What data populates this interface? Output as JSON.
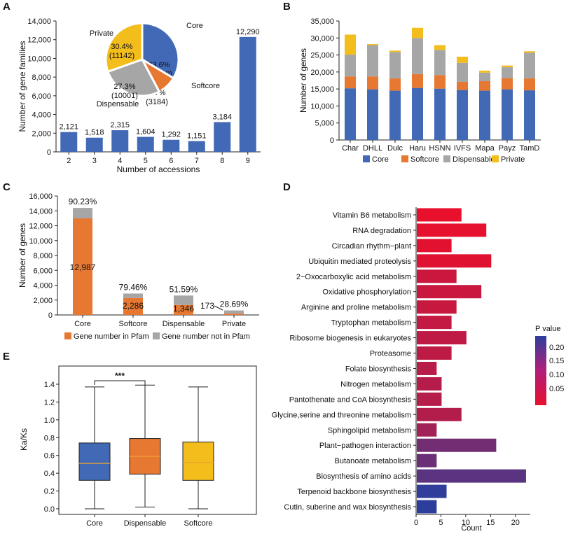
{
  "panels": {
    "A": "A",
    "B": "B",
    "C": "C",
    "D": "D",
    "E": "E"
  },
  "colors": {
    "core": "#4169b5",
    "softcore": "#e67832",
    "dispensable": "#a6a6a6",
    "private": "#f3bd1c"
  },
  "chart_data": [
    {
      "id": "A",
      "type": "bar",
      "xlabel": "Number of accessions",
      "ylabel": "Number of gene families",
      "categories": [
        "2",
        "3",
        "4",
        "5",
        "6",
        "7",
        "8",
        "9"
      ],
      "values": [
        2121,
        1518,
        2315,
        1604,
        1292,
        1151,
        3184,
        12290
      ],
      "labels": [
        "2,121",
        "1,518",
        "2,315",
        "1,604",
        "1,292",
        "1,151",
        "3,184",
        "12,290"
      ],
      "ylim": [
        0,
        14000
      ],
      "yticks": [
        "0",
        "2,000",
        "4,000",
        "6,000",
        "8,000",
        "10,000",
        "12,000",
        "14,000"
      ],
      "inset_pie": {
        "type": "pie",
        "slices": [
          {
            "name": "Core",
            "value": 12290,
            "percent": "33.6%",
            "count": "(12290)",
            "color": "#4169b5"
          },
          {
            "name": "Softcore",
            "value": 3184,
            "percent": "8.7%",
            "count": "(3184)",
            "color": "#e67832"
          },
          {
            "name": "Dispensable",
            "value": 10001,
            "percent": "27.3%",
            "count": "(10001)",
            "color": "#a6a6a6"
          },
          {
            "name": "Private",
            "value": 11142,
            "percent": "30.4%",
            "count": "(11142)",
            "color": "#f3bd1c"
          }
        ]
      }
    },
    {
      "id": "B",
      "type": "bar",
      "stacked": true,
      "ylabel": "Number of genes",
      "categories": [
        "Char",
        "DHLL",
        "Dulc",
        "Haru",
        "HSNN",
        "IVFS",
        "Mapa",
        "Payz",
        "TamD"
      ],
      "series": [
        {
          "name": "Core",
          "values": [
            15200,
            14900,
            14500,
            15300,
            15100,
            14700,
            14500,
            14900,
            14600
          ]
        },
        {
          "name": "Softcore",
          "values": [
            3500,
            3800,
            3600,
            4100,
            4000,
            2400,
            2800,
            3300,
            3500
          ]
        },
        {
          "name": "Dispensable",
          "values": [
            6400,
            9200,
            7800,
            10600,
            7400,
            5600,
            2500,
            3200,
            7600
          ]
        },
        {
          "name": "Private",
          "values": [
            5900,
            300,
            400,
            3000,
            1400,
            1800,
            600,
            500,
            400
          ]
        }
      ],
      "ylim": [
        0,
        35000
      ],
      "yticks": [
        "0",
        "5,000",
        "10,000",
        "15,000",
        "20,000",
        "25,000",
        "30,000",
        "35,000"
      ],
      "legend": [
        "Core",
        "Softcore",
        "Dispensable",
        "Private"
      ]
    },
    {
      "id": "C",
      "type": "bar",
      "stacked": true,
      "ylabel": "Number of genes",
      "categories": [
        "Core",
        "Softcore",
        "Dispensable",
        "Private"
      ],
      "series": [
        {
          "name": "Gene number in Pfam",
          "values": [
            12987,
            2286,
            1346,
            173
          ]
        },
        {
          "name": "Gene number not in Pfam",
          "values": [
            1407,
            591,
            1263,
            430
          ]
        }
      ],
      "in_labels": [
        "12,987",
        "2,286",
        "1,346",
        "173"
      ],
      "pct_labels": [
        "90.23%",
        "79.46%",
        "51.59%",
        "28.69%"
      ],
      "ylim": [
        0,
        16000
      ],
      "yticks": [
        "0",
        "2,000",
        "4,000",
        "6,000",
        "8,000",
        "10,000",
        "12,000",
        "14,000",
        "16,000"
      ],
      "legend": [
        "Gene number in Pfam",
        "Gene number not in Pfam"
      ]
    },
    {
      "id": "D",
      "type": "bar",
      "orientation": "horizontal",
      "xlabel": "Count",
      "categories": [
        "Vitamin B6 metabolism",
        "RNA degradation",
        "Circadian rhythm−plant",
        "Ubiquitin mediated proteolysis",
        "2−Oxocarboxylic acid metabolism",
        "Oxidative phosphorylation",
        "Arginine and proline metabolism",
        "Tryptophan metabolism",
        "Ribosome biogenesis in eukaryotes",
        "Proteasome",
        "Folate biosynthesis",
        "Nitrogen metabolism",
        "Pantothenate and CoA biosynthesis",
        "Glycine,serine and threonine metabolism",
        "Sphingolipid metabolism",
        "Plant−pathogen interaction",
        "Butanoate metabolism",
        "Biosynthesis of amino acids",
        "Terpenoid backbone biosynthesis",
        "Cutin, suberine and wax biosynthesis"
      ],
      "values": [
        9,
        14,
        7,
        15,
        8,
        13,
        8,
        7,
        10,
        7,
        4,
        5,
        5,
        9,
        4,
        16,
        4,
        22,
        6,
        4
      ],
      "pvalues": [
        0.001,
        0.005,
        0.008,
        0.012,
        0.035,
        0.038,
        0.04,
        0.045,
        0.05,
        0.052,
        0.058,
        0.06,
        0.062,
        0.064,
        0.085,
        0.14,
        0.15,
        0.17,
        0.22,
        0.225
      ],
      "xlim": [
        0,
        23
      ],
      "xticks": [
        "0",
        "5",
        "10",
        "15",
        "20"
      ],
      "colorbar": {
        "title": "P value",
        "ticks": [
          "0.20",
          "0.15",
          "0.10",
          "0.05"
        ],
        "low_color": "#e8102c",
        "high_color": "#2c3e9c"
      }
    },
    {
      "id": "E",
      "type": "box",
      "ylabel": "Ka/Ks",
      "categories": [
        "Core",
        "Dispensable",
        "Softcore"
      ],
      "boxes": [
        {
          "min": 0.0,
          "q1": 0.32,
          "median": 0.51,
          "q3": 0.74,
          "max": 1.37
        },
        {
          "min": 0.02,
          "q1": 0.39,
          "median": 0.59,
          "q3": 0.79,
          "max": 1.39
        },
        {
          "min": 0.0,
          "q1": 0.32,
          "median": 0.52,
          "q3": 0.75,
          "max": 1.37
        }
      ],
      "ylim": [
        -0.1,
        1.5
      ],
      "yticks": [
        "0.0",
        "0.2",
        "0.4",
        "0.6",
        "0.8",
        "1.0",
        "1.2",
        "1.4"
      ],
      "significance": "***"
    }
  ]
}
